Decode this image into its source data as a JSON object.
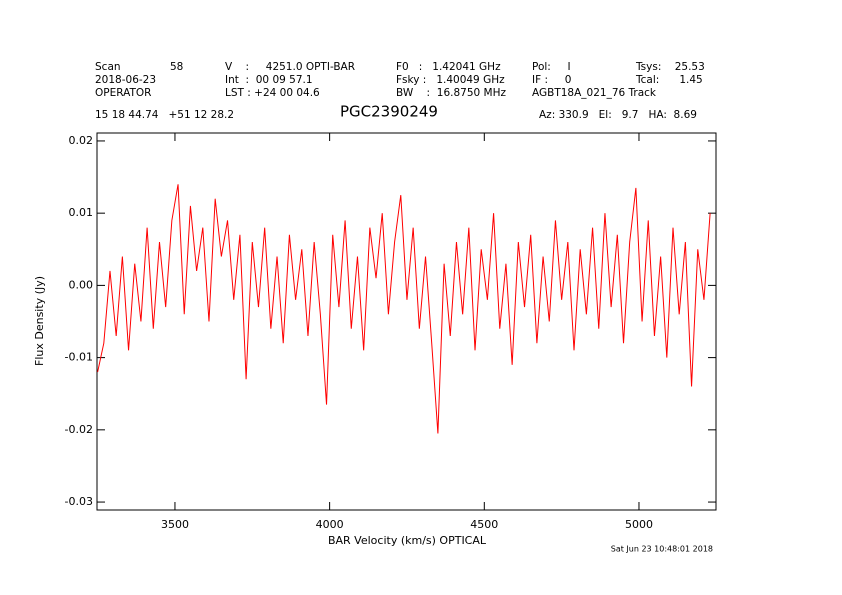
{
  "header": [
    "Scan",
    "58",
    "V    :     4251.0 OPTI-BAR",
    "F0   :   1.42041 GHz",
    "Pol:     I",
    "Tsys:    25.53",
    "2018-06-23",
    "Int  :  00 09 57.1",
    "Fsky :   1.40049 GHz",
    "IF :     0",
    "Tcal:      1.45",
    "OPERATOR",
    "LST : +24 00 04.6",
    "BW    :  16.8750 MHz",
    "AGBT18A_021_76 Track",
    "15 18 44.74   +51 12 28.2",
    "Az: 330.9   El:   9.7   HA:  8.69"
  ],
  "footer": "Sat Jun 23 10:48:01 2018",
  "chart_data": {
    "type": "line",
    "title": "PGC2390249",
    "title_color": "#00e000",
    "xlabel": "BAR Velocity (km/s) OPTICAL",
    "ylabel": "Flux Density (Jy)",
    "xlim": [
      3248,
      5249
    ],
    "ylim": [
      -0.0311,
      0.0211
    ],
    "xticks": [
      3500,
      4000,
      4500,
      5000
    ],
    "yticks": [
      -0.03,
      -0.02,
      -0.01,
      {
        "value": 0,
        "label": "0.00"
      },
      0.01,
      0.02
    ],
    "x": [
      3250,
      3270,
      3290,
      3310,
      3330,
      3350,
      3370,
      3390,
      3410,
      3430,
      3450,
      3470,
      3490,
      3510,
      3530,
      3550,
      3570,
      3590,
      3610,
      3630,
      3650,
      3670,
      3690,
      3710,
      3730,
      3750,
      3770,
      3790,
      3810,
      3830,
      3850,
      3870,
      3890,
      3910,
      3930,
      3950,
      3970,
      3990,
      4010,
      4030,
      4050,
      4070,
      4090,
      4110,
      4130,
      4150,
      4170,
      4190,
      4210,
      4230,
      4250,
      4270,
      4290,
      4310,
      4330,
      4350,
      4370,
      4390,
      4410,
      4430,
      4450,
      4470,
      4490,
      4510,
      4530,
      4550,
      4570,
      4590,
      4610,
      4630,
      4650,
      4670,
      4690,
      4710,
      4730,
      4750,
      4770,
      4790,
      4810,
      4830,
      4850,
      4870,
      4890,
      4910,
      4930,
      4950,
      4970,
      4990,
      5010,
      5030,
      5050,
      5070,
      5090,
      5110,
      5130,
      5150,
      5170,
      5190,
      5210,
      5230
    ],
    "series": [
      {
        "name": "spectrum",
        "color": "#ff0000",
        "values": [
          -0.012,
          -0.008,
          0.002,
          -0.007,
          0.004,
          -0.009,
          0.003,
          -0.005,
          0.008,
          -0.006,
          0.006,
          -0.003,
          0.009,
          0.014,
          -0.004,
          0.011,
          0.002,
          0.008,
          -0.005,
          0.012,
          0.004,
          0.009,
          -0.002,
          0.007,
          -0.013,
          0.006,
          -0.003,
          0.008,
          -0.006,
          0.004,
          -0.008,
          0.007,
          -0.002,
          0.005,
          -0.007,
          0.006,
          -0.004,
          -0.0165,
          0.007,
          -0.003,
          0.009,
          -0.006,
          0.004,
          -0.009,
          0.008,
          0.001,
          0.01,
          -0.004,
          0.006,
          0.0125,
          -0.002,
          0.008,
          -0.006,
          0.004,
          -0.008,
          -0.0205,
          0.003,
          -0.007,
          0.006,
          -0.004,
          0.008,
          -0.009,
          0.005,
          -0.002,
          0.01,
          -0.006,
          0.003,
          -0.011,
          0.006,
          -0.003,
          0.007,
          -0.008,
          0.004,
          -0.005,
          0.009,
          -0.002,
          0.006,
          -0.009,
          0.005,
          -0.004,
          0.008,
          -0.006,
          0.01,
          -0.003,
          0.007,
          -0.008,
          0.006,
          0.0135,
          -0.005,
          0.009,
          -0.007,
          0.004,
          -0.01,
          0.008,
          -0.004,
          0.006,
          -0.014,
          0.005,
          -0.002,
          0.01
        ]
      }
    ]
  }
}
